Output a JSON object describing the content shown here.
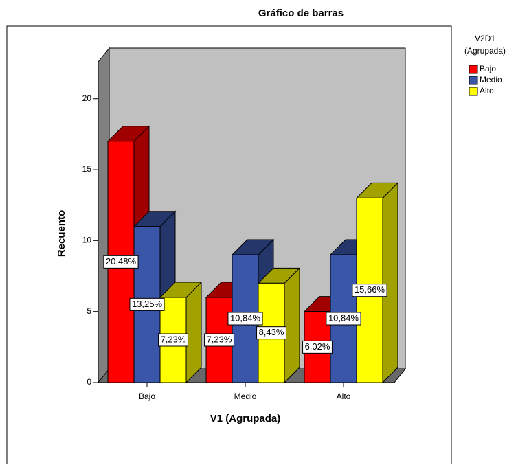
{
  "chart_data": {
    "type": "bar3d",
    "title": "Gráfico de barras",
    "x_label": "V1 (Agrupada)",
    "y_label": "Recuento",
    "legend_title": [
      "V2D1",
      "(Agrupada)"
    ],
    "categories": [
      "Bajo",
      "Medio",
      "Alto"
    ],
    "series": [
      {
        "name": "Bajo",
        "color": "#ff0000",
        "values": [
          17,
          6,
          5
        ],
        "percentages": [
          20.48,
          7.23,
          6.02
        ],
        "percentage_labels": [
          "20,48%",
          "7,23%",
          "6,02%"
        ]
      },
      {
        "name": "Medio",
        "color": "#3a56a8",
        "values": [
          11,
          9,
          9
        ],
        "percentages": [
          13.25,
          10.84,
          10.84
        ],
        "percentage_labels": [
          "13,25%",
          "10,84%",
          "10,84%"
        ]
      },
      {
        "name": "Alto",
        "color": "#ffff00",
        "values": [
          6,
          7,
          13
        ],
        "percentages": [
          7.23,
          8.43,
          15.66
        ],
        "percentage_labels": [
          "7,23%",
          "8,43%",
          "15,66%"
        ]
      }
    ],
    "ylim": [
      0,
      22.6
    ],
    "yticks": [
      0,
      5,
      10,
      15,
      20
    ],
    "legend": "right"
  }
}
